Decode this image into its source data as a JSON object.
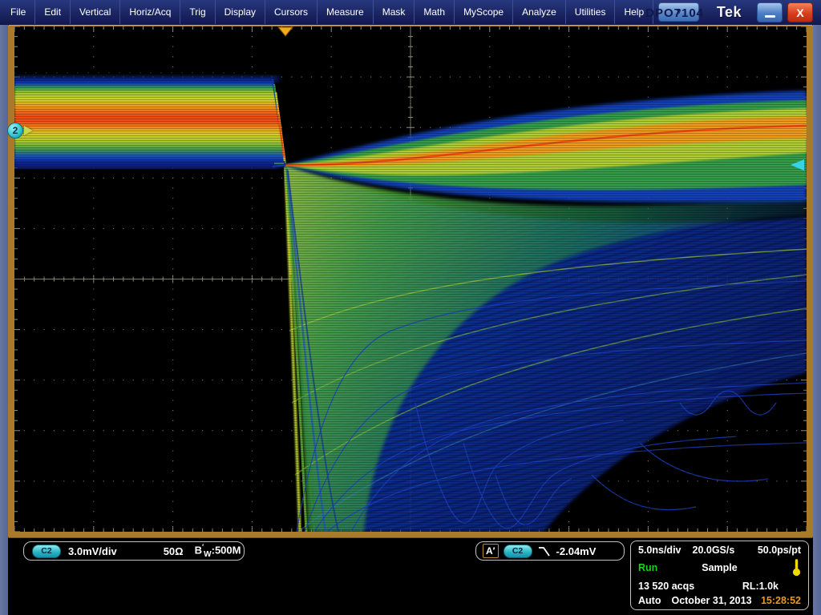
{
  "window": {
    "watermark": "DPO7104",
    "logo": "Tek",
    "close_label": "X"
  },
  "menu": {
    "items": [
      "File",
      "Edit",
      "Vertical",
      "Horiz/Acq",
      "Trig",
      "Display",
      "Cursors",
      "Measure",
      "Mask",
      "Math",
      "MyScope",
      "Analyze",
      "Utilities",
      "Help"
    ],
    "dropdown_icon": "▼"
  },
  "channel_readout": {
    "channel": "C2",
    "scale": "3.0mV/div",
    "impedance": "50Ω",
    "bw_b": "B",
    "bw_prime": "′",
    "bw_sub": "W",
    "bw_value": ":500M"
  },
  "trigger_readout": {
    "source_badge": "A′",
    "channel": "C2",
    "slope_icon": "falling-edge",
    "level": "-2.04mV"
  },
  "acq": {
    "timebase": "5.0ns/div",
    "sample_rate": "20.0GS/s",
    "resolution": "50.0ps/pt",
    "run_state": "Run",
    "mode": "Sample",
    "count": "13 520 acqs",
    "record_length": "RL:1.0k",
    "trigger_mode": "Auto",
    "date": "October 31, 2013",
    "time": "15:28:52"
  },
  "waveform": {
    "channel_marker_label": "2"
  },
  "colors": {
    "channel_accent": "#2cc2cc",
    "run_green": "#19d119",
    "time_orange": "#e89a1d",
    "frame_tan": "#aa7a2b",
    "trace_hot": "#ef4e12",
    "trace_cold": "#0c2070"
  }
}
